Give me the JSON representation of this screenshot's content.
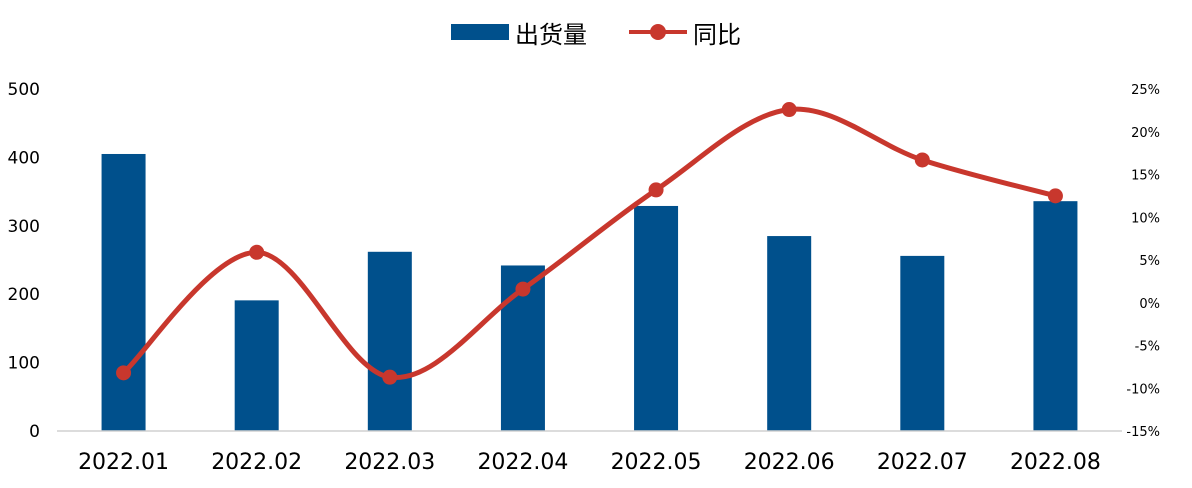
{
  "legend": {
    "bar_label": "出货量",
    "line_label": "同比"
  },
  "colors": {
    "bar": "#00508c",
    "line": "#c8372d",
    "axis": "#d0d0d0"
  },
  "chart_data": {
    "type": "bar",
    "categories": [
      "2022.01",
      "2022.02",
      "2022.03",
      "2022.04",
      "2022.05",
      "2022.06",
      "2022.07",
      "2022.08"
    ],
    "series": [
      {
        "name": "出货量",
        "type": "bar",
        "axis": "left",
        "values": [
          405,
          191,
          262,
          242,
          329,
          285,
          256,
          336
        ]
      },
      {
        "name": "同比",
        "type": "line",
        "axis": "right",
        "values": [
          -8.2,
          5.9,
          -8.7,
          1.6,
          13.2,
          22.6,
          16.7,
          12.5
        ]
      }
    ],
    "y_left": {
      "ylim": [
        0,
        500
      ],
      "ticks": [
        "0",
        "100",
        "200",
        "300",
        "400",
        "500"
      ]
    },
    "y_right": {
      "ylim": [
        -15,
        25
      ],
      "ticks": [
        "-15%",
        "-10%",
        "-5%",
        "0%",
        "5%",
        "10%",
        "15%",
        "20%",
        "25%"
      ]
    },
    "xlabel": "",
    "ylabel": "",
    "grid": false,
    "legend_position": "top-center"
  }
}
